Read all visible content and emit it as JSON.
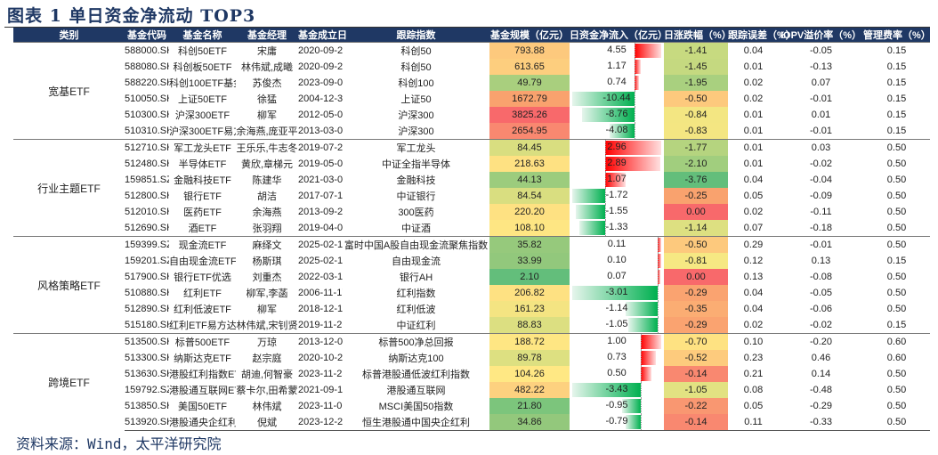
{
  "title": "图表 1  单日资金净流动 TOP3",
  "source": "资料来源：Wind，太平洋研究院",
  "headers": [
    "类别",
    "基金代码",
    "基金名称",
    "基金经理",
    "基金成立日",
    "跟踪指数",
    "基金规模（亿元）",
    "日资金净流入（亿元）",
    "日涨跌幅（%）",
    "跟踪误差（%）",
    "IOPV溢价率（%）",
    "管理费率（%）"
  ],
  "colors": {
    "header_bg": "#1F3864",
    "inflow_bar": "#FF0000",
    "outflow_bar": "#00B050"
  },
  "groups": [
    {
      "category": "宽基ETF",
      "rows": [
        {
          "code": "588000.SH",
          "name": "科创50ETF",
          "manager": "宋庸",
          "inception": "2020-09-28",
          "index": "科创50",
          "size": "793.88",
          "size_color": "#FDC97D",
          "flow": "4.55",
          "change": "-1.41",
          "change_color": "#C7DA80",
          "te": "0.04",
          "iopv": "-0.05",
          "fee": "0.15"
        },
        {
          "code": "588080.SH",
          "name": "科创板50ETF",
          "manager": "林伟斌,成曦",
          "inception": "2020-09-28",
          "index": "科创50",
          "size": "613.65",
          "size_color": "#FDCE7E",
          "flow": "1.17",
          "change": "-1.45",
          "change_color": "#C5D980",
          "te": "0.01",
          "iopv": "-0.13",
          "fee": "0.15"
        },
        {
          "code": "588220.SH",
          "name": "科创100ETF基金",
          "manager": "苏俊杰",
          "inception": "2023-09-06",
          "index": "科创100",
          "size": "49.79",
          "size_color": "#A9CF7E",
          "flow": "0.74",
          "change": "-1.95",
          "change_color": "#A9D07F",
          "te": "0.02",
          "iopv": "0.07",
          "fee": "0.15"
        },
        {
          "code": "510050.SH",
          "name": "上证50ETF",
          "manager": "徐猛",
          "inception": "2004-12-30",
          "index": "上证50",
          "size": "1672.79",
          "size_color": "#F9A26E",
          "flow": "-10.44",
          "change": "-0.50",
          "change_color": "#FDC97D",
          "te": "0.02",
          "iopv": "-0.01",
          "fee": "0.15"
        },
        {
          "code": "510300.SH",
          "name": "沪深300ETF",
          "manager": "柳军",
          "inception": "2012-05-04",
          "index": "沪深300",
          "size": "3825.26",
          "size_color": "#F8696B",
          "flow": "-8.76",
          "change": "-0.84",
          "change_color": "#F3E682",
          "te": "0.01",
          "iopv": "0.01",
          "fee": "0.15"
        },
        {
          "code": "510310.SH",
          "name": "沪深300ETF易方达",
          "manager": "余海燕,庞亚平",
          "inception": "2013-03-06",
          "index": "沪深300",
          "size": "2654.95",
          "size_color": "#F98870",
          "flow": "-4.08",
          "change": "-0.83",
          "change_color": "#F4E682",
          "te": "0.01",
          "iopv": "-0.01",
          "fee": "0.15"
        }
      ]
    },
    {
      "category": "行业主题ETF",
      "rows": [
        {
          "code": "512710.SH",
          "name": "军工龙头ETF",
          "manager": "王乐乐,牛志冬",
          "inception": "2019-07-23",
          "index": "军工龙头",
          "size": "84.45",
          "size_color": "#D9DE80",
          "flow": "2.96",
          "change": "-1.77",
          "change_color": "#B5D47F",
          "te": "0.01",
          "iopv": "0.03",
          "fee": "0.50"
        },
        {
          "code": "512480.SH",
          "name": "半导体ETF",
          "manager": "黄欣,章梯元",
          "inception": "2019-05-08",
          "index": "中证全指半导体",
          "size": "218.63",
          "size_color": "#FEE182",
          "flow": "2.89",
          "change": "-2.10",
          "change_color": "#A1CE7E",
          "te": "0.01",
          "iopv": "-0.02",
          "fee": "0.50"
        },
        {
          "code": "159851.SZ",
          "name": "金融科技ETF",
          "manager": "陈建华",
          "inception": "2021-03-04",
          "index": "金融科技",
          "size": "44.13",
          "size_color": "#9CCC7D",
          "flow": "1.07",
          "change": "-3.76",
          "change_color": "#63BE7B",
          "te": "0.04",
          "iopv": "-0.04",
          "fee": "0.50"
        },
        {
          "code": "512800.SH",
          "name": "银行ETF",
          "manager": "胡洁",
          "inception": "2017-07-18",
          "index": "中证银行",
          "size": "84.54",
          "size_color": "#D9DE80",
          "flow": "-1.72",
          "change": "-0.25",
          "change_color": "#F9A26E",
          "te": "0.05",
          "iopv": "-0.09",
          "fee": "0.50"
        },
        {
          "code": "512010.SH",
          "name": "医药ETF",
          "manager": "余海燕",
          "inception": "2013-09-23",
          "index": "300医药",
          "size": "220.20",
          "size_color": "#FEE182",
          "flow": "-1.55",
          "change": "0.00",
          "change_color": "#F8696B",
          "te": "0.02",
          "iopv": "-0.11",
          "fee": "0.50"
        },
        {
          "code": "512690.SH",
          "name": "酒ETF",
          "manager": "张羽翔",
          "inception": "2019-04-04",
          "index": "中证酒",
          "size": "108.10",
          "size_color": "#FEE683",
          "flow": "-1.33",
          "change": "-1.14",
          "change_color": "#DDE081",
          "te": "0.07",
          "iopv": "-0.18",
          "fee": "0.50"
        }
      ]
    },
    {
      "category": "风格策略ETF",
      "rows": [
        {
          "code": "159399.SZ",
          "name": "现金流ETF",
          "manager": "麻绎文",
          "inception": "2025-02-19",
          "index": "富时中国A股自由现金流聚焦指数",
          "size": "35.82",
          "size_color": "#96C97C",
          "flow": "0.11",
          "change": "-0.50",
          "change_color": "#FDC97D",
          "te": "0.29",
          "iopv": "-0.01",
          "fee": "0.50"
        },
        {
          "code": "159201.SZ",
          "name": "自由现金流ETF",
          "manager": "杨斯琪",
          "inception": "2025-02-19",
          "index": "自由现金流",
          "size": "33.99",
          "size_color": "#92C87C",
          "flow": "0.10",
          "change": "-0.81",
          "change_color": "#F6E883",
          "te": "0.12",
          "iopv": "0.13",
          "fee": "0.15"
        },
        {
          "code": "517900.SH",
          "name": "银行ETF优选",
          "manager": "刘重杰",
          "inception": "2022-03-15",
          "index": "银行AH",
          "size": "2.10",
          "size_color": "#63BE7B",
          "flow": "0.07",
          "change": "0.00",
          "change_color": "#F8696B",
          "te": "0.13",
          "iopv": "-0.08",
          "fee": "0.50"
        },
        {
          "code": "510880.SH",
          "name": "红利ETF",
          "manager": "柳军,李菡",
          "inception": "2006-11-17",
          "index": "红利指数",
          "size": "206.82",
          "size_color": "#FEE182",
          "flow": "-3.01",
          "change": "-0.29",
          "change_color": "#FAA370",
          "te": "0.04",
          "iopv": "-0.05",
          "fee": "0.50"
        },
        {
          "code": "512890.SH",
          "name": "红利低波ETF",
          "manager": "柳军",
          "inception": "2018-12-19",
          "index": "红利低波",
          "size": "161.23",
          "size_color": "#F4E482",
          "flow": "-1.14",
          "change": "-0.35",
          "change_color": "#FBAD73",
          "te": "0.04",
          "iopv": "-0.06",
          "fee": "0.50"
        },
        {
          "code": "515180.SH",
          "name": "红利ETF易方达",
          "manager": "林伟斌,宋钊贤",
          "inception": "2019-11-26",
          "index": "中证红利",
          "size": "88.83",
          "size_color": "#DCDF81",
          "flow": "-1.05",
          "change": "-0.29",
          "change_color": "#FAA370",
          "te": "0.02",
          "iopv": "-0.02",
          "fee": "0.15"
        }
      ]
    },
    {
      "category": "跨境ETF",
      "rows": [
        {
          "code": "513500.SH",
          "name": "标普500ETF",
          "manager": "万琼",
          "inception": "2013-12-05",
          "index": "标普500净总回报",
          "size": "188.72",
          "size_color": "#FEE683",
          "flow": "1.00",
          "change": "-0.70",
          "change_color": "#FEE282",
          "te": "0.10",
          "iopv": "-0.20",
          "fee": "0.60"
        },
        {
          "code": "513300.SH",
          "name": "纳斯达克ETF",
          "manager": "赵宗庭",
          "inception": "2020-10-22",
          "index": "纳斯达克100",
          "size": "89.78",
          "size_color": "#DDE081",
          "flow": "0.73",
          "change": "-0.52",
          "change_color": "#FDCB7D",
          "te": "0.23",
          "iopv": "0.46",
          "fee": "0.60"
        },
        {
          "code": "513630.SH",
          "name": "港股红利指数ETF",
          "manager": "胡迪,何智豪",
          "inception": "2023-11-23",
          "index": "标普港股通低波红利指数",
          "size": "104.26",
          "size_color": "#FFE884",
          "flow": "0.50",
          "change": "-0.14",
          "change_color": "#F98870",
          "te": "0.21",
          "iopv": "0.14",
          "fee": "0.50"
        },
        {
          "code": "159792.SZ",
          "name": "港股通互联网ETF",
          "manager": "蔡卡尔,田希蒙",
          "inception": "2021-09-15",
          "index": "港股通互联网",
          "size": "482.22",
          "size_color": "#FDD17F",
          "flow": "-3.43",
          "change": "-1.05",
          "change_color": "#E2E282",
          "te": "0.08",
          "iopv": "-0.48",
          "fee": "0.50"
        },
        {
          "code": "513850.SH",
          "name": "美国50ETF",
          "manager": "林伟斌",
          "inception": "2023-11-06",
          "index": "MSCI美国50指数",
          "size": "21.80",
          "size_color": "#7CC57C",
          "flow": "-0.95",
          "change": "-0.22",
          "change_color": "#F99771",
          "te": "0.05",
          "iopv": "-0.29",
          "fee": "0.50"
        },
        {
          "code": "513920.SH",
          "name": "港股通央企红利ETF",
          "manager": "倪斌",
          "inception": "2023-12-20",
          "index": "恒生港股通中国央企红利",
          "size": "34.86",
          "size_color": "#93C87C",
          "flow": "-0.79",
          "change": "-0.14",
          "change_color": "#F98870",
          "te": "0.11",
          "iopv": "-0.33",
          "fee": "0.50"
        }
      ]
    }
  ]
}
